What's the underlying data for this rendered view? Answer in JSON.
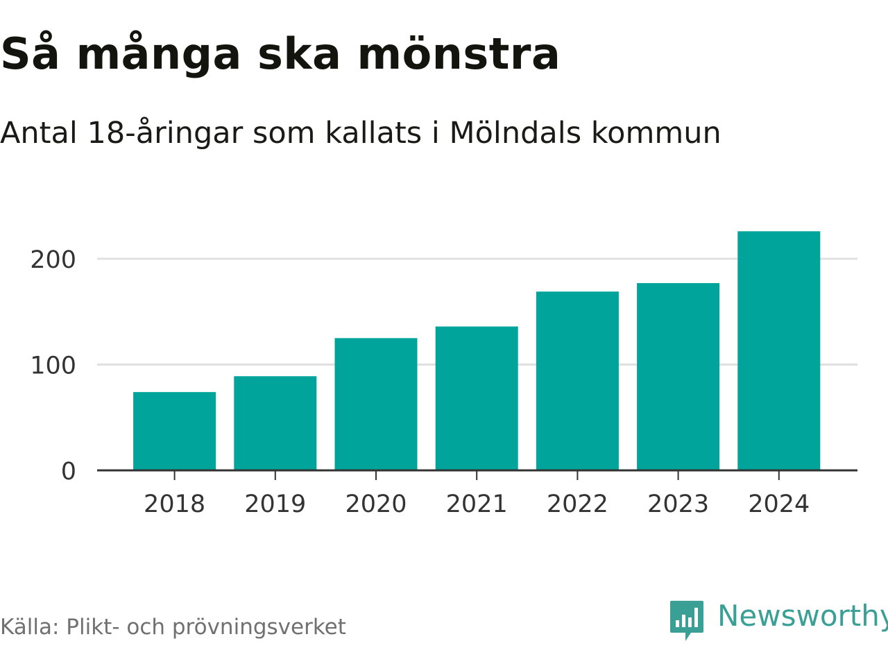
{
  "title": "Så många ska mönstra",
  "subtitle": "Antal 18-åringar som kallats i Mölndals kommun",
  "source": "Källa: Plikt- och prövningsverket",
  "logo": {
    "text": "Newsworthy",
    "icon": "newsworthy-logo-icon",
    "color": "#3aa096"
  },
  "colors": {
    "bar": "#00a49a",
    "grid": "#e0e0e0",
    "axis": "#333333",
    "tick_text": "#333333"
  },
  "chart_data": {
    "type": "bar",
    "title": "Så många ska mönstra",
    "subtitle": "Antal 18-åringar som kallats i Mölndals kommun",
    "xlabel": "",
    "ylabel": "",
    "categories": [
      "2018",
      "2019",
      "2020",
      "2021",
      "2022",
      "2023",
      "2024"
    ],
    "values": [
      74,
      89,
      125,
      136,
      169,
      177,
      226
    ],
    "yticks": [
      0,
      100,
      200
    ],
    "ylim": [
      0,
      226
    ],
    "grid": true
  }
}
